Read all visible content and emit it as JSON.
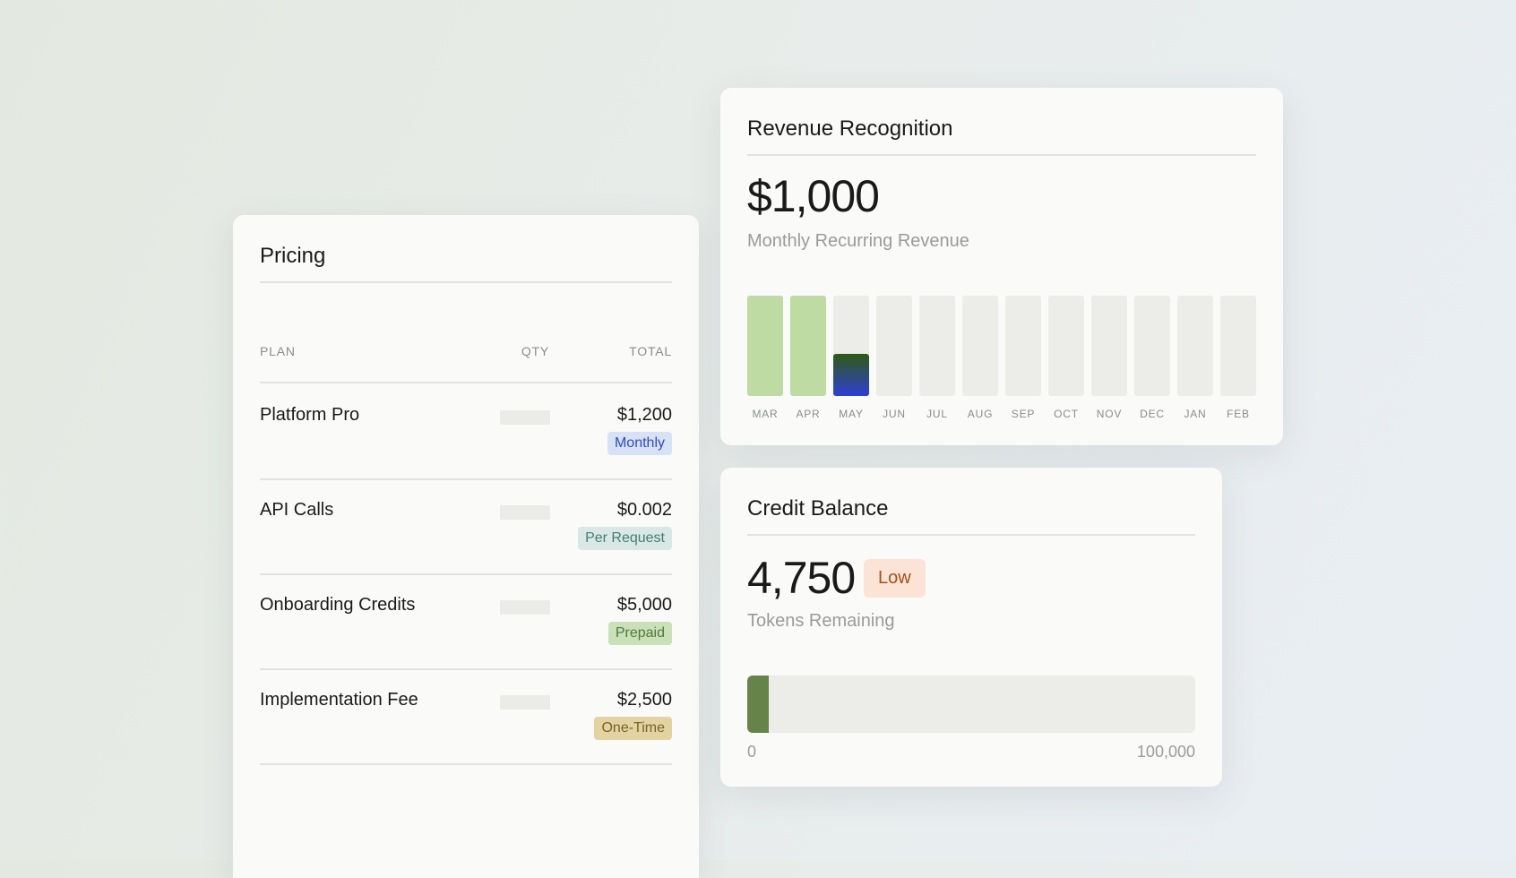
{
  "pricing": {
    "title": "Pricing",
    "columns": {
      "plan": "PLAN",
      "qty": "QTY",
      "total": "TOTAL"
    },
    "rows": [
      {
        "plan": "Platform Pro",
        "total": "$1,200",
        "badge": "Monthly"
      },
      {
        "plan": "API Calls",
        "total": "$0.002",
        "badge": "Per Request"
      },
      {
        "plan": "Onboarding Credits",
        "total": "$5,000",
        "badge": "Prepaid"
      },
      {
        "plan": "Implementation Fee",
        "total": "$2,500",
        "badge": "One-Time"
      }
    ]
  },
  "revenue": {
    "title": "Revenue Recognition",
    "amount": "$1,000",
    "subtitle": "Monthly Recurring Revenue"
  },
  "chart_data": {
    "type": "bar",
    "categories": [
      "MAR",
      "APR",
      "MAY",
      "JUN",
      "JUL",
      "AUG",
      "SEP",
      "OCT",
      "NOV",
      "DEC",
      "JAN",
      "FEB"
    ],
    "values": [
      1,
      1,
      0.42,
      0,
      0,
      0,
      0,
      0,
      0,
      0,
      0,
      0
    ],
    "ylim": [
      0,
      1
    ],
    "colors": {
      "recognized": "#bedba3",
      "current_top": "#2f5a12",
      "current_bottom": "#2e3fd6",
      "empty": "#ecede9",
      "label": "#8a8d8a"
    }
  },
  "credit": {
    "title": "Credit Balance",
    "amount": "4,750",
    "status": "Low",
    "subtitle": "Tokens Remaining",
    "progress": 0.0475,
    "scale_min": "0",
    "scale_max": "100,000"
  }
}
